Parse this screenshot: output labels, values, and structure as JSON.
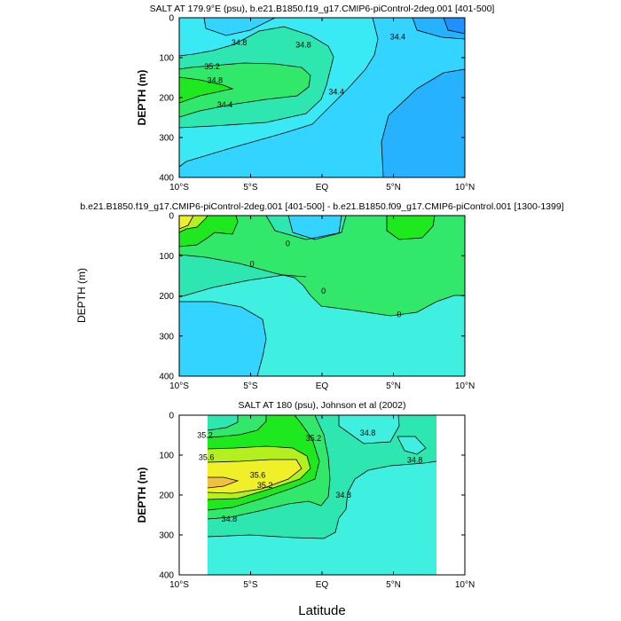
{
  "colors": {
    "level_fills": [
      "#1e90ff",
      "#27b2ff",
      "#33d4ff",
      "#39eaf5",
      "#3ff0e0",
      "#2ee6b0",
      "#32e86a",
      "#1ee81e",
      "#b4f020",
      "#f0f028",
      "#f0c040"
    ],
    "line": "#000000",
    "background": "#ffffff"
  },
  "figure": {
    "xlabel": "Latitude"
  },
  "chart_data": [
    {
      "type": "contour",
      "title": "SALT AT 179.9°E (psu), b.e21.B1850.f19_g17.CMIP6-piControl-2deg.001 [401-500]",
      "xlabel": "",
      "ylabel": "DEPTH (m)",
      "x_range": [
        -10,
        10
      ],
      "x_ticks": [
        "10°S",
        "5°S",
        "EQ",
        "5°N",
        "10°N"
      ],
      "ylim": [
        0,
        400
      ],
      "y_inverted": true,
      "y_ticks": [
        "0",
        "100",
        "200",
        "300",
        "400"
      ],
      "contour_labels": [
        {
          "text": "34.8",
          "lat": -5.8,
          "depth": 62
        },
        {
          "text": "34.8",
          "lat": -1.3,
          "depth": 68
        },
        {
          "text": "34.4",
          "lat": 5.3,
          "depth": 48
        },
        {
          "text": "35.2",
          "lat": -7.7,
          "depth": 122
        },
        {
          "text": "34.8",
          "lat": -7.5,
          "depth": 157
        },
        {
          "text": "34.4",
          "lat": 1.0,
          "depth": 185
        },
        {
          "text": "34.4",
          "lat": -6.8,
          "depth": 218
        }
      ]
    },
    {
      "type": "contour",
      "title": "b.e21.B1850.f19_g17.CMIP6-piControl-2deg.001 [401-500] - b.e21.B1850.f09_g17.CMIP6-piControl.001 [1300-1399]",
      "xlabel": "",
      "ylabel": "DEPTH (m)",
      "x_range": [
        -10,
        10
      ],
      "x_ticks": [
        "10°S",
        "5°S",
        "EQ",
        "5°N",
        "10°N"
      ],
      "ylim": [
        0,
        400
      ],
      "y_inverted": true,
      "y_ticks": [
        "0",
        "100",
        "200",
        "300",
        "400"
      ],
      "contour_labels": [
        {
          "text": "0",
          "lat": -2.4,
          "depth": 70
        },
        {
          "text": "0",
          "lat": -4.9,
          "depth": 120
        },
        {
          "text": "0",
          "lat": 0.1,
          "depth": 188
        },
        {
          "text": "0",
          "lat": 5.4,
          "depth": 246
        }
      ]
    },
    {
      "type": "contour",
      "title": "SALT AT 180 (psu), Johnson et al (2002)",
      "xlabel": "",
      "ylabel": "DEPTH (m)",
      "x_range": [
        -10,
        10
      ],
      "x_ticks": [
        "10°S",
        "5°S",
        "EQ",
        "5°N",
        "10°N"
      ],
      "ylim": [
        0,
        400
      ],
      "y_inverted": true,
      "y_ticks": [
        "0",
        "100",
        "200",
        "300",
        "400"
      ],
      "data_lat_range": [
        -8,
        8
      ],
      "contour_labels": [
        {
          "text": "35.2",
          "lat": -8.2,
          "depth": 50
        },
        {
          "text": "35.2",
          "lat": -0.6,
          "depth": 58
        },
        {
          "text": "34.8",
          "lat": 3.2,
          "depth": 44
        },
        {
          "text": "35.6",
          "lat": -8.1,
          "depth": 105
        },
        {
          "text": "34.8",
          "lat": 6.5,
          "depth": 112
        },
        {
          "text": "35.6",
          "lat": -4.5,
          "depth": 150
        },
        {
          "text": "35.2",
          "lat": -4.0,
          "depth": 175
        },
        {
          "text": "34.8",
          "lat": 1.5,
          "depth": 200
        },
        {
          "text": "34.8",
          "lat": -6.5,
          "depth": 260
        }
      ]
    }
  ]
}
